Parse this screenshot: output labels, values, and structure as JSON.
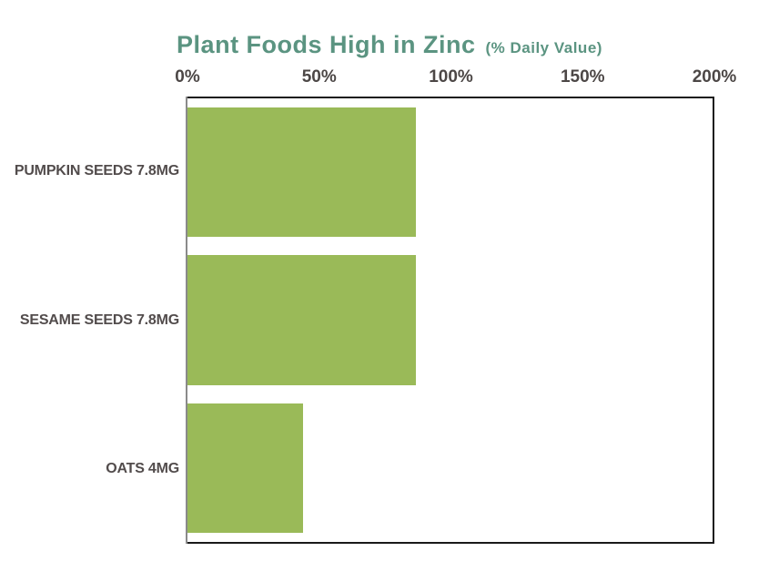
{
  "title": {
    "main": "Plant Foods High in Zinc",
    "subtitle": "(% Daily Value)"
  },
  "colors": {
    "bar": "#9aba58",
    "title": "#5b9481",
    "category_label": "#524c4c",
    "tick_label": "#4c4746",
    "plot_border": "#1a1a1a",
    "axis_line": "#8a8a8a",
    "background": "#ffffff"
  },
  "chart_data": {
    "type": "bar",
    "orientation": "horizontal",
    "title": "Plant Foods High in Zinc (% Daily Value)",
    "categories": [
      "PUMPKIN SEEDS 7.8MG",
      "SESAME SEEDS 7.8MG",
      "OATS 4MG"
    ],
    "values": [
      87,
      87,
      44
    ],
    "unit": "%",
    "xlim": [
      0,
      200
    ],
    "tick_labels": [
      "0%",
      "50%",
      "100%",
      "150%",
      "200%"
    ],
    "tick_position": "top",
    "xlabel": "",
    "ylabel": "",
    "grid": false,
    "legend": false
  }
}
